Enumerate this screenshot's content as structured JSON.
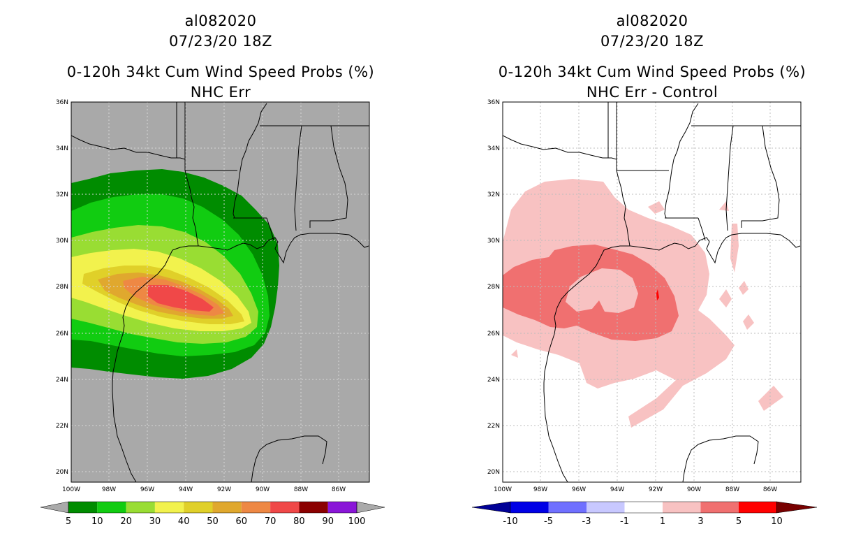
{
  "left_panel": {
    "storm_id": "al082020",
    "datetime": "07/23/20 18Z",
    "title": "0-120h 34kt Cum Wind Speed Probs (%)",
    "subtitle": "NHC Err",
    "background_color": "#a9a9a9"
  },
  "right_panel": {
    "storm_id": "al082020",
    "datetime": "07/23/20 18Z",
    "title": "0-120h 34kt Cum Wind Speed Probs (%)",
    "subtitle": "NHC Err - Control",
    "background_color": "#ffffff"
  },
  "lat_labels": [
    "36N",
    "34N",
    "32N",
    "30N",
    "28N",
    "26N",
    "24N",
    "22N",
    "20N"
  ],
  "lon_labels": [
    "100W",
    "98W",
    "96W",
    "94W",
    "92W",
    "90W",
    "88W",
    "86W"
  ],
  "left_colorbar": {
    "labels": [
      "5",
      "10",
      "20",
      "30",
      "40",
      "50",
      "60",
      "70",
      "80",
      "90",
      "100"
    ],
    "colors": [
      "#008c00",
      "#11cc11",
      "#99dd33",
      "#f2f24d",
      "#e0d029",
      "#e0a82e",
      "#ee8844",
      "#f04848",
      "#8b0000",
      "#8a16d8"
    ],
    "end_color": "#aaaaaa"
  },
  "right_colorbar": {
    "labels": [
      "-10",
      "-5",
      "-3",
      "-1",
      "1",
      "3",
      "5",
      "10"
    ],
    "colors": [
      "#0000e6",
      "#7070ff",
      "#c8c8ff",
      "#ffffff",
      "#f8c2c2",
      "#f07070",
      "#ff0000"
    ],
    "low_end_color": "#000096",
    "high_end_color": "#780000"
  },
  "colors": {
    "prob_5": "#008c00",
    "prob_10": "#11cc11",
    "prob_20": "#99dd33",
    "prob_30": "#f2f24d",
    "prob_40": "#e0d029",
    "prob_50": "#e0a82e",
    "prob_60": "#ee8844",
    "prob_70": "#f04848",
    "diff_1": "#f8c2c2",
    "diff_3": "#f07070",
    "diff_5": "#ff0000"
  }
}
